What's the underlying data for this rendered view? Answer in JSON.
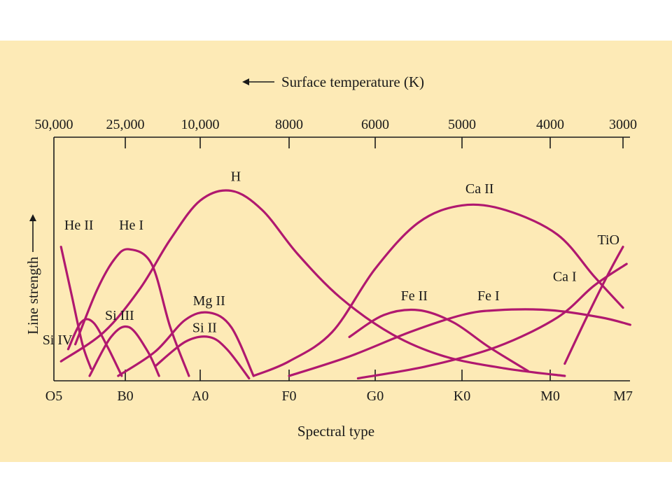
{
  "colors": {
    "background": "#fdeab6",
    "curve": "#b0186f",
    "axis": "#1a1a1a"
  },
  "chart_data": {
    "type": "line",
    "title": "",
    "xlabel": "Spectral type",
    "ylabel": "Line strength",
    "x2label": "Surface temperature (K)",
    "x2label_arrow": "left",
    "ylabel_arrow": "up",
    "grid": false,
    "xlim": [
      0,
      8.0
    ],
    "ylim": [
      0,
      1
    ],
    "x_ticks": [
      {
        "label": "O5",
        "x": 0
      },
      {
        "label": "B0",
        "x": 1
      },
      {
        "label": "A0",
        "x": 2
      },
      {
        "label": "F0",
        "x": 3
      },
      {
        "label": "G0",
        "x": 4
      },
      {
        "label": "K0",
        "x": 5
      },
      {
        "label": "M0",
        "x": 6
      },
      {
        "label": "M7",
        "x": 7
      }
    ],
    "temperature_ticks": [
      {
        "label": "50,000",
        "x": 0
      },
      {
        "label": "25,000",
        "x": 1
      },
      {
        "label": "10,000",
        "x": 2
      },
      {
        "label": "8000",
        "x": 3
      },
      {
        "label": "6000",
        "x": 4
      },
      {
        "label": "5000",
        "x": 5
      },
      {
        "label": "4000",
        "x": 6
      },
      {
        "label": "3000",
        "x": 7
      }
    ],
    "series": [
      {
        "name": "He II",
        "label_at": [
          0.35,
          0.62
        ],
        "x": [
          0.1,
          0.25,
          0.4,
          0.52
        ],
        "y": [
          0.55,
          0.35,
          0.15,
          0.05
        ]
      },
      {
        "name": "He I",
        "label_at": [
          1.08,
          0.62
        ],
        "x": [
          0.3,
          0.6,
          0.85,
          1.05,
          1.35,
          1.6,
          1.85
        ],
        "y": [
          0.15,
          0.37,
          0.5,
          0.54,
          0.48,
          0.22,
          0.02
        ]
      },
      {
        "name": "H",
        "label_at": [
          2.4,
          0.82
        ],
        "x": [
          0.1,
          0.7,
          1.2,
          1.6,
          2.0,
          2.35,
          2.7,
          3.1,
          3.6,
          4.2,
          4.8,
          5.5,
          6.2
        ],
        "y": [
          0.08,
          0.2,
          0.38,
          0.58,
          0.74,
          0.78,
          0.7,
          0.52,
          0.34,
          0.19,
          0.1,
          0.05,
          0.02
        ]
      },
      {
        "name": "Ca II",
        "label_at": [
          5.2,
          0.77
        ],
        "x": [
          2.6,
          3.0,
          3.5,
          4.0,
          4.5,
          5.0,
          5.5,
          6.1,
          6.6,
          7.0
        ],
        "y": [
          0.02,
          0.08,
          0.2,
          0.46,
          0.65,
          0.72,
          0.7,
          0.6,
          0.43,
          0.3
        ]
      },
      {
        "name": "Fe II",
        "label_at": [
          4.45,
          0.33
        ],
        "x": [
          3.7,
          4.1,
          4.5,
          4.9,
          5.3,
          5.75
        ],
        "y": [
          0.18,
          0.27,
          0.29,
          0.24,
          0.14,
          0.04
        ]
      },
      {
        "name": "Fe I",
        "label_at": [
          5.3,
          0.33
        ],
        "x": [
          3.0,
          3.7,
          4.4,
          5.0,
          5.4,
          6.0,
          6.7,
          7.1
        ],
        "y": [
          0.02,
          0.1,
          0.2,
          0.27,
          0.29,
          0.29,
          0.26,
          0.23
        ]
      },
      {
        "name": "Ca I",
        "label_at": [
          6.2,
          0.41
        ],
        "x": [
          3.8,
          4.6,
          5.4,
          6.1,
          6.6,
          7.05
        ],
        "y": [
          0.01,
          0.06,
          0.14,
          0.26,
          0.39,
          0.48
        ]
      },
      {
        "name": "TiO",
        "label_at": [
          6.8,
          0.56
        ],
        "x": [
          6.2,
          6.5,
          6.8,
          7.0
        ],
        "y": [
          0.07,
          0.26,
          0.44,
          0.55
        ]
      },
      {
        "name": "Si IV",
        "label_at": [
          0.05,
          0.15
        ],
        "x": [
          0.2,
          0.38,
          0.55,
          0.75,
          0.95
        ],
        "y": [
          0.13,
          0.24,
          0.24,
          0.14,
          0.02
        ]
      },
      {
        "name": "Si III",
        "label_at": [
          0.92,
          0.25
        ],
        "x": [
          0.5,
          0.8,
          1.05,
          1.3,
          1.45
        ],
        "y": [
          0.02,
          0.18,
          0.22,
          0.12,
          0.02
        ]
      },
      {
        "name": "Mg II",
        "label_at": [
          2.1,
          0.31
        ],
        "x": [
          0.9,
          1.4,
          1.8,
          2.1,
          2.35,
          2.6
        ],
        "y": [
          0.02,
          0.12,
          0.25,
          0.28,
          0.22,
          0.02
        ]
      },
      {
        "name": "Si II",
        "label_at": [
          2.05,
          0.2
        ],
        "x": [
          1.4,
          1.8,
          2.1,
          2.3,
          2.55
        ],
        "y": [
          0.06,
          0.16,
          0.18,
          0.13,
          0.01
        ]
      }
    ]
  }
}
